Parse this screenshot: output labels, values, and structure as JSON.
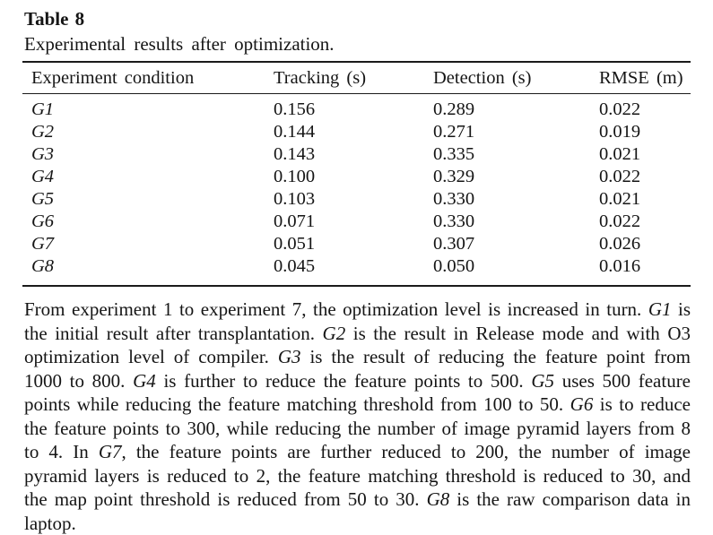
{
  "colors": {
    "background": "#ffffff",
    "text": "#151515",
    "rule": "#1a1a1a"
  },
  "table": {
    "label": "Table 8",
    "caption": "Experimental results after optimization.",
    "columns": [
      "Experiment condition",
      "Tracking (s)",
      "Detection (s)",
      "RMSE (m)"
    ],
    "rows": [
      {
        "condition": "G1",
        "tracking": "0.156",
        "detection": "0.289",
        "rmse": "0.022"
      },
      {
        "condition": "G2",
        "tracking": "0.144",
        "detection": "0.271",
        "rmse": "0.019"
      },
      {
        "condition": "G3",
        "tracking": "0.143",
        "detection": "0.335",
        "rmse": "0.021"
      },
      {
        "condition": "G4",
        "tracking": "0.100",
        "detection": "0.329",
        "rmse": "0.022"
      },
      {
        "condition": "G5",
        "tracking": "0.103",
        "detection": "0.330",
        "rmse": "0.021"
      },
      {
        "condition": "G6",
        "tracking": "0.071",
        "detection": "0.330",
        "rmse": "0.022"
      },
      {
        "condition": "G7",
        "tracking": "0.051",
        "detection": "0.307",
        "rmse": "0.026"
      },
      {
        "condition": "G8",
        "tracking": "0.045",
        "detection": "0.050",
        "rmse": "0.016"
      }
    ]
  },
  "footnote_segments": [
    {
      "text": "From experiment 1 to experiment 7, the optimization level is increased in turn. ",
      "italic": false
    },
    {
      "text": "G1",
      "italic": true
    },
    {
      "text": " is the initial result after transplantation. ",
      "italic": false
    },
    {
      "text": "G2",
      "italic": true
    },
    {
      "text": " is the result in Release mode and with O3 optimization level of compiler. ",
      "italic": false
    },
    {
      "text": "G3",
      "italic": true
    },
    {
      "text": " is the result of reducing the feature point from 1000 to 800. ",
      "italic": false
    },
    {
      "text": "G4",
      "italic": true
    },
    {
      "text": " is further to reduce the feature points to 500. ",
      "italic": false
    },
    {
      "text": "G5",
      "italic": true
    },
    {
      "text": " uses 500 feature points while reducing the feature matching threshold from 100 to 50. ",
      "italic": false
    },
    {
      "text": "G6",
      "italic": true
    },
    {
      "text": " is to reduce the feature points to 300, while reducing the number of image pyramid layers from 8 to 4. In ",
      "italic": false
    },
    {
      "text": "G7",
      "italic": true
    },
    {
      "text": ", the feature points are further reduced to 200, the number of image pyramid layers is reduced to 2, the feature matching threshold is reduced to 30, and the map point threshold is reduced from 50 to 30. ",
      "italic": false
    },
    {
      "text": "G8",
      "italic": true
    },
    {
      "text": " is the raw comparison data in laptop.",
      "italic": false
    }
  ]
}
